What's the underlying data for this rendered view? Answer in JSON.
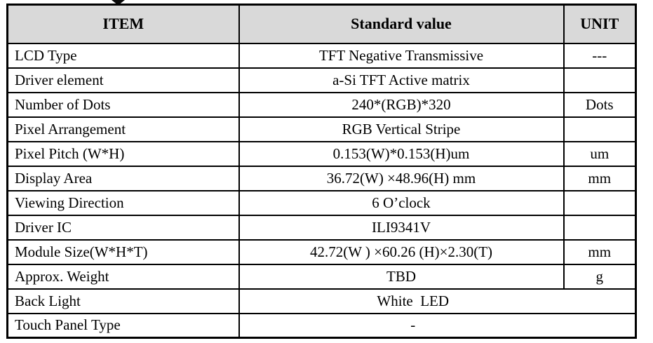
{
  "header": {
    "item": "ITEM",
    "standard_value": "Standard value",
    "unit": "UNIT"
  },
  "rows": [
    {
      "item": "LCD Type",
      "value": "TFT Negative Transmissive",
      "unit": "---",
      "merged": false
    },
    {
      "item": "Driver element",
      "value": "a-Si TFT Active matrix",
      "unit": "",
      "merged": false
    },
    {
      "item": "Number of Dots",
      "value": "240*(RGB)*320",
      "unit": "Dots",
      "merged": false
    },
    {
      "item": "Pixel Arrangement",
      "value": "RGB Vertical Stripe",
      "unit": "",
      "merged": false
    },
    {
      "item": "Pixel Pitch (W*H)",
      "value": "0.153(W)*0.153(H)um",
      "unit": "um",
      "merged": false
    },
    {
      "item": "Display Area",
      "value": "36.72(W) ×48.96(H) mm",
      "unit": "mm",
      "merged": false
    },
    {
      "item": "Viewing Direction",
      "value": "6 O’clock",
      "unit": "",
      "merged": false
    },
    {
      "item": "Driver IC",
      "value": "ILI9341V",
      "unit": "",
      "merged": false
    },
    {
      "item": "Module Size(W*H*T)",
      "value": "42.72(W ) ×60.26 (H)×2.30(T)",
      "unit": "mm",
      "merged": false
    },
    {
      "item": "Approx. Weight",
      "value": "TBD",
      "unit": "g",
      "merged": false
    },
    {
      "item": "Back Light",
      "value": "White  LED",
      "unit": "",
      "merged": true
    },
    {
      "item": "Touch Panel Type",
      "value": "-",
      "unit": "",
      "merged": true
    }
  ]
}
